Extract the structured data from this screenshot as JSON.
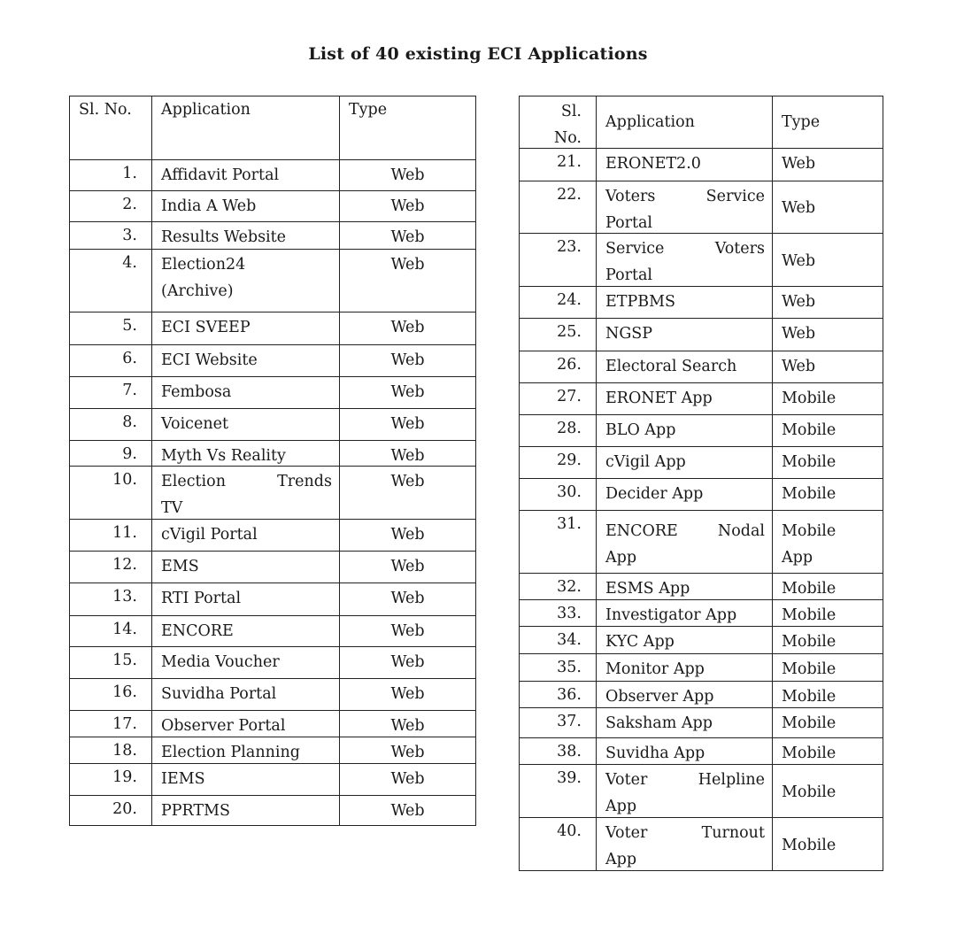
{
  "title": "List of 40 existing ECI Applications",
  "left_table": {
    "headers": {
      "sl": "Sl. No.",
      "application": "Application",
      "type": "Type"
    },
    "rows": [
      {
        "sl": "1.",
        "application": "Affidavit Portal",
        "type": "Web"
      },
      {
        "sl": "2.",
        "application": "India A Web",
        "type": "Web"
      },
      {
        "sl": "3.",
        "application": "Results Website",
        "type": "Web"
      },
      {
        "sl": "4.",
        "application": "Election24 (Archive)",
        "type": "Web"
      },
      {
        "sl": "5.",
        "application": "ECI SVEEP",
        "type": "Web"
      },
      {
        "sl": "6.",
        "application": "ECI Website",
        "type": "Web"
      },
      {
        "sl": "7.",
        "application": "Fembosa",
        "type": "Web"
      },
      {
        "sl": "8.",
        "application": "Voicenet",
        "type": "Web"
      },
      {
        "sl": "9.",
        "application": "Myth Vs Reality",
        "type": "Web"
      },
      {
        "sl": "10.",
        "application": "Election Trends TV",
        "type": "Web"
      },
      {
        "sl": "11.",
        "application": "cVigil Portal",
        "type": "Web"
      },
      {
        "sl": "12.",
        "application": "EMS",
        "type": "Web"
      },
      {
        "sl": "13.",
        "application": "RTI Portal",
        "type": "Web"
      },
      {
        "sl": "14.",
        "application": "ENCORE",
        "type": "Web"
      },
      {
        "sl": "15.",
        "application": "Media Voucher",
        "type": "Web"
      },
      {
        "sl": "16.",
        "application": "Suvidha Portal",
        "type": "Web"
      },
      {
        "sl": "17.",
        "application": "Observer Portal",
        "type": "Web"
      },
      {
        "sl": "18.",
        "application": "Election Planning",
        "type": "Web"
      },
      {
        "sl": "19.",
        "application": "IEMS",
        "type": "Web"
      },
      {
        "sl": "20.",
        "application": "PPRTMS",
        "type": "Web"
      }
    ]
  },
  "right_table": {
    "headers": {
      "sl": "Sl. No.",
      "application": "Application",
      "type": "Type"
    },
    "rows": [
      {
        "sl": "21.",
        "application": "ERONET2.0",
        "type": "Web"
      },
      {
        "sl": "22.",
        "application": "Voters Service Portal",
        "type": "Web"
      },
      {
        "sl": "23.",
        "application": "Service Voters Portal",
        "type": "Web"
      },
      {
        "sl": "24.",
        "application": "ETPBMS",
        "type": "Web"
      },
      {
        "sl": "25.",
        "application": "NGSP",
        "type": "Web"
      },
      {
        "sl": "26.",
        "application": "Electoral Search",
        "type": "Web"
      },
      {
        "sl": "27.",
        "application": "ERONET App",
        "type": "Mobile"
      },
      {
        "sl": "28.",
        "application": "BLO App",
        "type": "Mobile"
      },
      {
        "sl": "29.",
        "application": "cVigil App",
        "type": "Mobile"
      },
      {
        "sl": "30.",
        "application": "Decider App",
        "type": "Mobile"
      },
      {
        "sl": "31.",
        "application": "ENCORE Nodal App",
        "type": "Mobile App"
      },
      {
        "sl": "32.",
        "application": "ESMS App",
        "type": "Mobile"
      },
      {
        "sl": "33.",
        "application": "Investigator App",
        "type": "Mobile"
      },
      {
        "sl": "34.",
        "application": "KYC App",
        "type": "Mobile"
      },
      {
        "sl": "35.",
        "application": "Monitor App",
        "type": "Mobile"
      },
      {
        "sl": "36.",
        "application": "Observer App",
        "type": "Mobile"
      },
      {
        "sl": "37.",
        "application": "Saksham App",
        "type": "Mobile"
      },
      {
        "sl": "38.",
        "application": "Suvidha App",
        "type": "Mobile"
      },
      {
        "sl": "39.",
        "application": "Voter Helpline App",
        "type": "Mobile"
      },
      {
        "sl": "40.",
        "application": "Voter Turnout App",
        "type": "Mobile"
      }
    ]
  }
}
